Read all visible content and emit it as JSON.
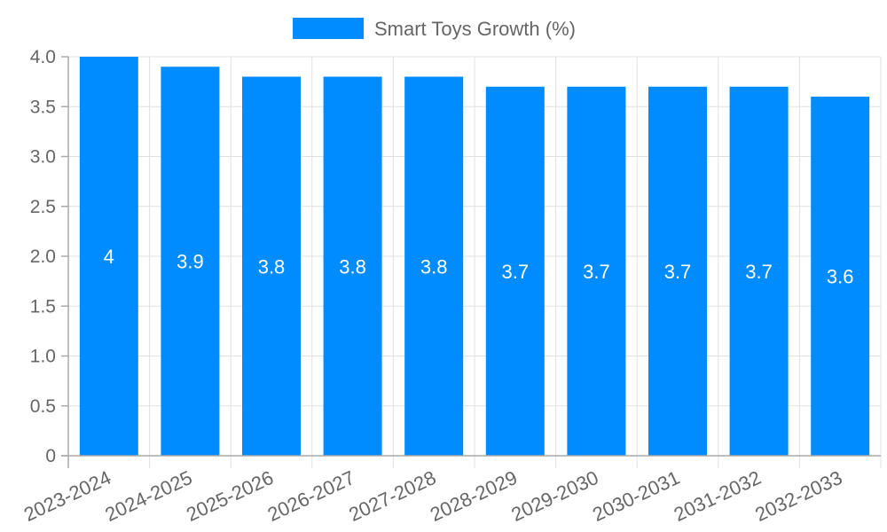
{
  "chart_data": {
    "type": "bar",
    "title": "",
    "xlabel": "",
    "ylabel": "",
    "legend": {
      "position": "top",
      "entries": [
        "Smart Toys Growth (%)"
      ]
    },
    "categories": [
      "2023-2024",
      "2024-2025",
      "2025-2026",
      "2026-2027",
      "2027-2028",
      "2028-2029",
      "2029-2030",
      "2030-2031",
      "2031-2032",
      "2032-2033"
    ],
    "series": [
      {
        "name": "Smart Toys Growth (%)",
        "values": [
          4,
          3.9,
          3.8,
          3.8,
          3.8,
          3.7,
          3.7,
          3.7,
          3.7,
          3.6
        ],
        "color": "#008cff"
      }
    ],
    "data_labels": [
      "4",
      "3.9",
      "3.8",
      "3.8",
      "3.8",
      "3.7",
      "3.7",
      "3.7",
      "3.7",
      "3.6"
    ],
    "ylim": [
      0,
      4
    ],
    "yticks": [
      0,
      0.5,
      1,
      1.5,
      2,
      2.5,
      3,
      3.5,
      4
    ],
    "ytick_labels": [
      "0",
      "0.5",
      "1.0",
      "1.5",
      "2.0",
      "2.5",
      "3.0",
      "3.5",
      "4.0"
    ],
    "grid": true
  }
}
